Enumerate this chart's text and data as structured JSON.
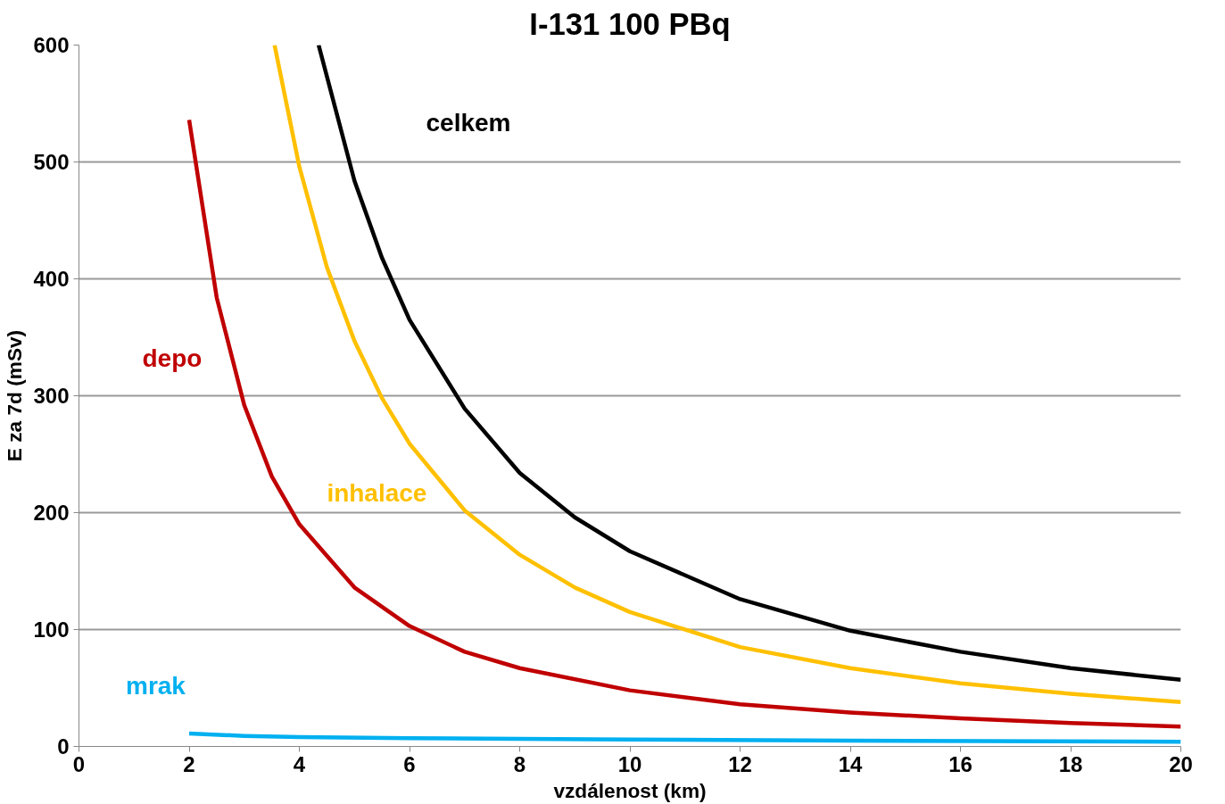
{
  "chart_data": {
    "type": "line",
    "title": "I-131 100 PBq",
    "xlabel": "vzdálenost (km)",
    "ylabel": "E za 7d (mSv)",
    "xlim": [
      0,
      20
    ],
    "ylim": [
      0,
      600
    ],
    "xticks": [
      0,
      2,
      4,
      6,
      8,
      10,
      12,
      14,
      16,
      18,
      20
    ],
    "yticks": [
      0,
      100,
      200,
      300,
      400,
      500,
      600
    ],
    "grid": "y",
    "line_style": "solid",
    "marker": "none",
    "series": [
      {
        "name": "celkem",
        "color": "#000000",
        "x": [
          4.35,
          5,
          5.5,
          6,
          7,
          8,
          9,
          10,
          12,
          14,
          16,
          18,
          20
        ],
        "values": [
          600,
          484,
          418,
          365,
          289,
          234,
          196,
          167,
          126,
          99,
          81,
          67,
          57
        ]
      },
      {
        "name": "inhalace",
        "color": "#ffc000",
        "x": [
          3.55,
          4,
          4.5,
          5,
          5.5,
          6,
          7,
          8,
          9,
          10,
          12,
          14,
          16,
          18,
          20
        ],
        "values": [
          600,
          496,
          410,
          347,
          298,
          259,
          202,
          164,
          136,
          115,
          85,
          67,
          54,
          45,
          38
        ]
      },
      {
        "name": "depo",
        "color": "#c00000",
        "x": [
          2,
          2.5,
          3,
          3.5,
          4,
          5,
          6,
          7,
          8,
          10,
          12,
          14,
          16,
          18,
          20
        ],
        "values": [
          536,
          384,
          292,
          231,
          190,
          136,
          103,
          81,
          67,
          48,
          36,
          29,
          24,
          20,
          17
        ]
      },
      {
        "name": "mrak",
        "color": "#00b0f0",
        "x": [
          2,
          3,
          4,
          6,
          8,
          10,
          14,
          20
        ],
        "values": [
          11,
          9,
          8,
          7,
          6.5,
          6,
          5,
          4
        ]
      }
    ]
  }
}
